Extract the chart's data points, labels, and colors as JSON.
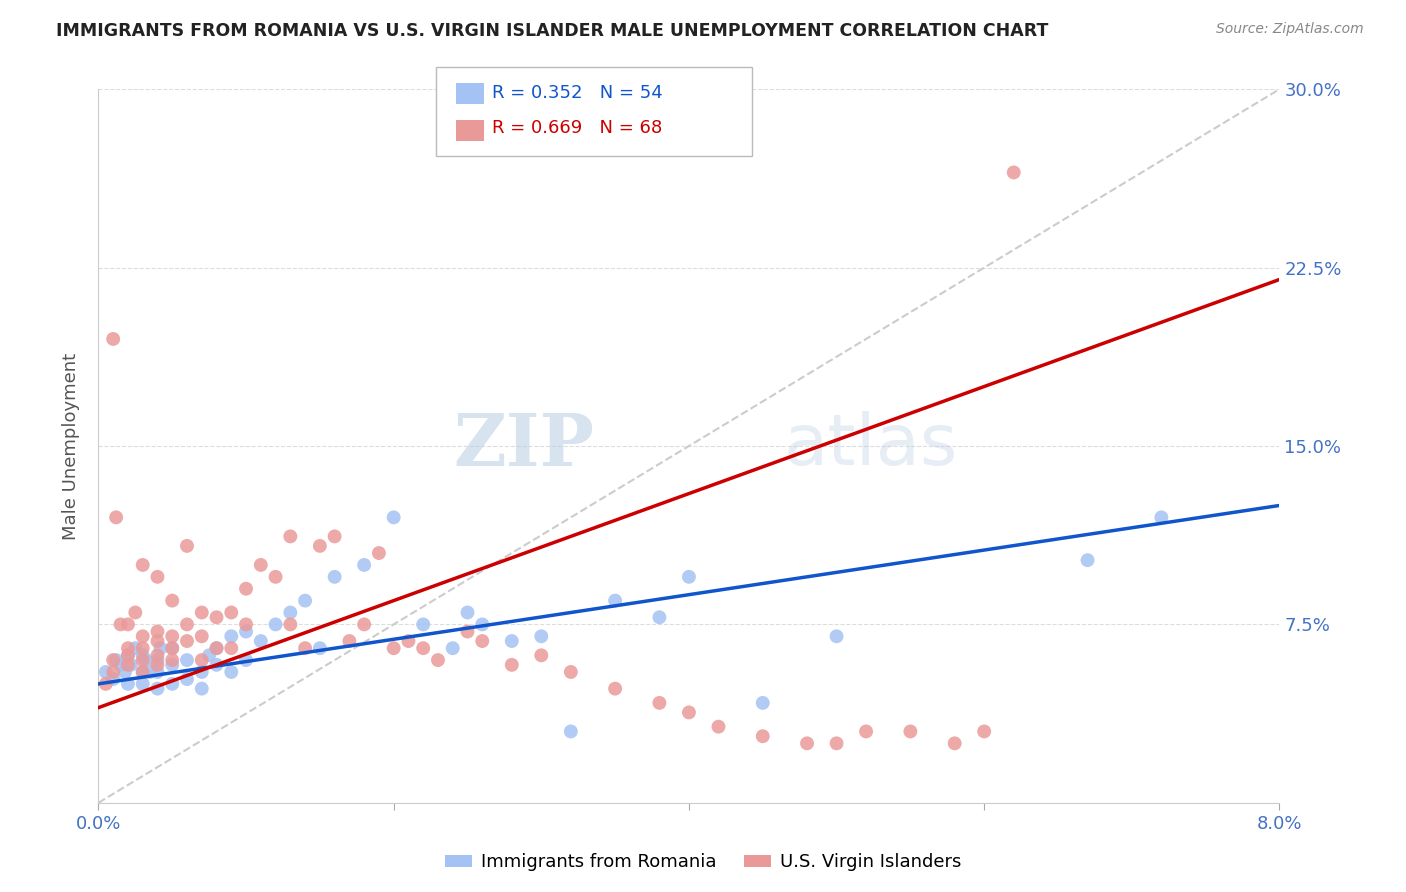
{
  "title": "IMMIGRANTS FROM ROMANIA VS U.S. VIRGIN ISLANDER MALE UNEMPLOYMENT CORRELATION CHART",
  "source": "Source: ZipAtlas.com",
  "ylabel_label": "Male Unemployment",
  "ylabel_ticks": [
    0.0,
    0.075,
    0.15,
    0.225,
    0.3
  ],
  "ylabel_tick_labels": [
    "",
    "7.5%",
    "15.0%",
    "22.5%",
    "30.0%"
  ],
  "xlim": [
    0.0,
    0.08
  ],
  "ylim": [
    0.0,
    0.3
  ],
  "watermark_zip": "ZIP",
  "watermark_atlas": "atlas",
  "blue_R": "0.352",
  "blue_N": "54",
  "pink_R": "0.669",
  "pink_N": "68",
  "blue_color": "#a4c2f4",
  "pink_color": "#ea9999",
  "blue_line_color": "#1155cc",
  "pink_line_color": "#cc0000",
  "diag_line_color": "#cccccc",
  "blue_scatter_x": [
    0.0005,
    0.001,
    0.0012,
    0.0015,
    0.0018,
    0.002,
    0.002,
    0.0022,
    0.0025,
    0.003,
    0.003,
    0.003,
    0.0032,
    0.0035,
    0.004,
    0.004,
    0.004,
    0.0042,
    0.005,
    0.005,
    0.005,
    0.006,
    0.006,
    0.007,
    0.007,
    0.0075,
    0.008,
    0.008,
    0.009,
    0.009,
    0.01,
    0.01,
    0.011,
    0.012,
    0.013,
    0.014,
    0.015,
    0.016,
    0.018,
    0.02,
    0.022,
    0.024,
    0.025,
    0.026,
    0.028,
    0.03,
    0.032,
    0.035,
    0.038,
    0.04,
    0.045,
    0.05,
    0.067,
    0.072
  ],
  "blue_scatter_y": [
    0.055,
    0.052,
    0.06,
    0.058,
    0.055,
    0.05,
    0.062,
    0.058,
    0.065,
    0.05,
    0.055,
    0.062,
    0.06,
    0.055,
    0.048,
    0.055,
    0.06,
    0.065,
    0.05,
    0.058,
    0.065,
    0.052,
    0.06,
    0.048,
    0.055,
    0.062,
    0.058,
    0.065,
    0.055,
    0.07,
    0.06,
    0.072,
    0.068,
    0.075,
    0.08,
    0.085,
    0.065,
    0.095,
    0.1,
    0.12,
    0.075,
    0.065,
    0.08,
    0.075,
    0.068,
    0.07,
    0.03,
    0.085,
    0.078,
    0.095,
    0.042,
    0.07,
    0.102,
    0.12
  ],
  "pink_scatter_x": [
    0.0005,
    0.001,
    0.001,
    0.001,
    0.0012,
    0.0015,
    0.002,
    0.002,
    0.002,
    0.002,
    0.0025,
    0.003,
    0.003,
    0.003,
    0.003,
    0.003,
    0.004,
    0.004,
    0.004,
    0.004,
    0.004,
    0.005,
    0.005,
    0.005,
    0.005,
    0.006,
    0.006,
    0.006,
    0.007,
    0.007,
    0.007,
    0.008,
    0.008,
    0.009,
    0.009,
    0.01,
    0.01,
    0.011,
    0.012,
    0.013,
    0.013,
    0.014,
    0.015,
    0.016,
    0.017,
    0.018,
    0.019,
    0.02,
    0.021,
    0.022,
    0.023,
    0.025,
    0.026,
    0.028,
    0.03,
    0.032,
    0.035,
    0.038,
    0.04,
    0.042,
    0.045,
    0.048,
    0.05,
    0.052,
    0.055,
    0.058,
    0.06,
    0.062
  ],
  "pink_scatter_y": [
    0.05,
    0.055,
    0.195,
    0.06,
    0.12,
    0.075,
    0.058,
    0.062,
    0.065,
    0.075,
    0.08,
    0.055,
    0.06,
    0.065,
    0.07,
    0.1,
    0.058,
    0.062,
    0.068,
    0.072,
    0.095,
    0.06,
    0.065,
    0.07,
    0.085,
    0.068,
    0.075,
    0.108,
    0.06,
    0.07,
    0.08,
    0.065,
    0.078,
    0.065,
    0.08,
    0.075,
    0.09,
    0.1,
    0.095,
    0.075,
    0.112,
    0.065,
    0.108,
    0.112,
    0.068,
    0.075,
    0.105,
    0.065,
    0.068,
    0.065,
    0.06,
    0.072,
    0.068,
    0.058,
    0.062,
    0.055,
    0.048,
    0.042,
    0.038,
    0.032,
    0.028,
    0.025,
    0.025,
    0.03,
    0.03,
    0.025,
    0.03,
    0.265
  ],
  "blue_trend_x": [
    0.0,
    0.08
  ],
  "blue_trend_y": [
    0.05,
    0.125
  ],
  "pink_trend_x": [
    0.0,
    0.08
  ],
  "pink_trend_y": [
    0.04,
    0.22
  ],
  "diag_trend_x": [
    0.0,
    0.08
  ],
  "diag_trend_y": [
    0.0,
    0.3
  ],
  "background_color": "#ffffff",
  "grid_color": "#dddddd",
  "tick_color": "#4472c4",
  "title_color": "#222222",
  "ylabel_color": "#555555"
}
